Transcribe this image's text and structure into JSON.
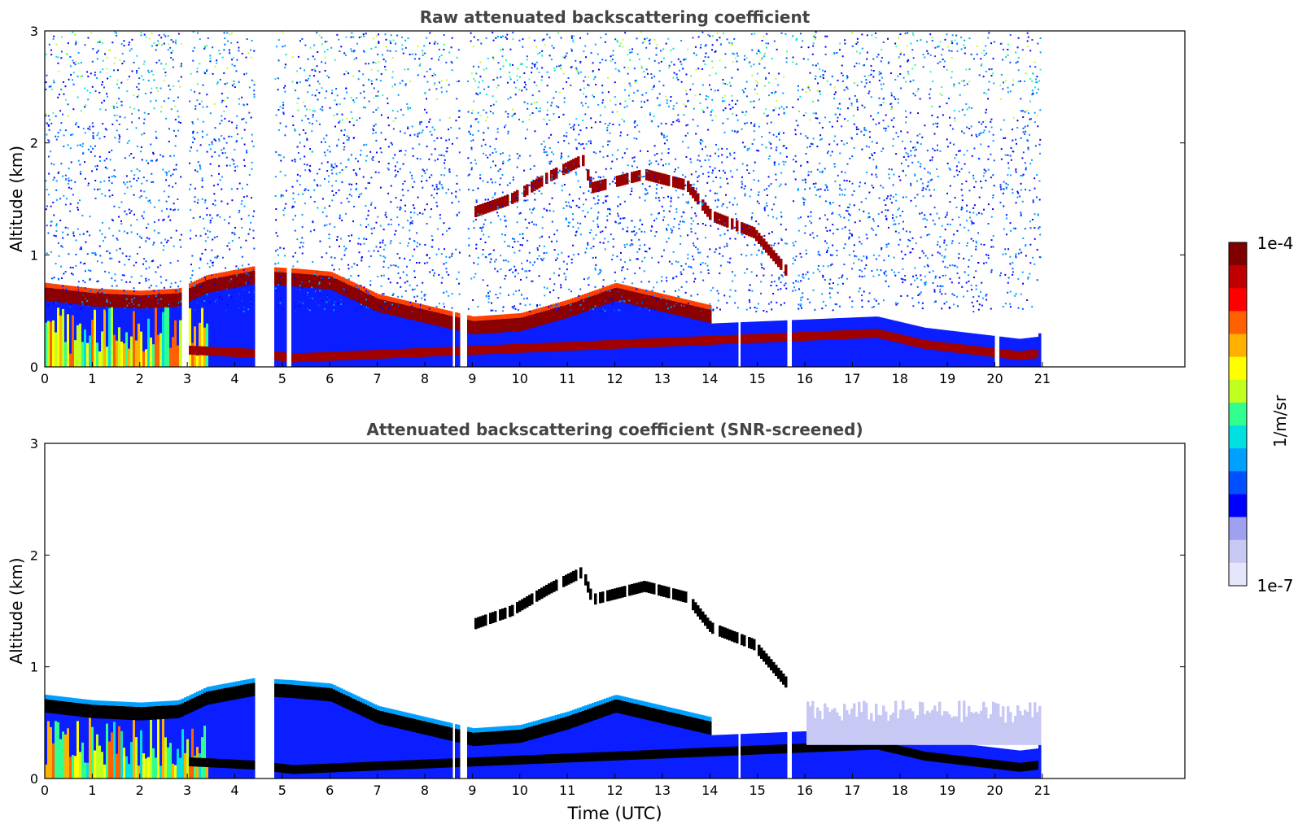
{
  "chart_data": [
    {
      "type": "heatmap",
      "title": "Raw attenuated backscattering coefficient",
      "xlabel": "",
      "ylabel": "Altitude (km)",
      "xlim": [
        0,
        24
      ],
      "ylim": [
        0,
        3
      ],
      "x_ticks": [
        "0",
        "1",
        "2",
        "3",
        "4",
        "5",
        "6",
        "7",
        "8",
        "9",
        "10",
        "11",
        "12",
        "13",
        "14",
        "15",
        "16",
        "17",
        "18",
        "19",
        "20",
        "21"
      ],
      "y_ticks": [
        "0",
        "1",
        "2",
        "3"
      ],
      "data_end_hour": 20.95,
      "noise_level": "high",
      "gaps": [
        [
          2.85,
          3.0
        ],
        [
          4.4,
          4.8
        ],
        [
          5.05,
          5.15
        ],
        [
          8.55,
          8.62
        ],
        [
          8.72,
          8.85
        ],
        [
          14.55,
          14.6
        ],
        [
          15.6,
          15.7
        ],
        [
          19.95,
          20.05
        ]
      ],
      "layers": [
        {
          "name": "boundary layer",
          "points": [
            [
              0,
              0.65
            ],
            [
              1,
              0.6
            ],
            [
              2,
              0.58
            ],
            [
              2.8,
              0.6
            ],
            [
              3.4,
              0.72
            ],
            [
              4.4,
              0.8
            ],
            [
              5.2,
              0.78
            ],
            [
              6,
              0.75
            ],
            [
              7,
              0.55
            ],
            [
              8,
              0.45
            ],
            [
              9,
              0.35
            ],
            [
              10,
              0.38
            ],
            [
              11,
              0.5
            ],
            [
              12,
              0.65
            ],
            [
              13,
              0.55
            ],
            [
              14,
              0.45
            ]
          ]
        },
        {
          "name": "elevated layer",
          "points": [
            [
              9,
              1.38
            ],
            [
              9.8,
              1.5
            ],
            [
              10.6,
              1.7
            ],
            [
              11.3,
              1.85
            ],
            [
              11.5,
              1.6
            ],
            [
              12.6,
              1.72
            ],
            [
              13.5,
              1.62
            ],
            [
              14.0,
              1.35
            ],
            [
              14.9,
              1.2
            ],
            [
              15.6,
              0.85
            ]
          ]
        },
        {
          "name": "surface layer",
          "points": [
            [
              3.0,
              0.15
            ],
            [
              4.4,
              0.12
            ],
            [
              5.2,
              0.08
            ],
            [
              17.5,
              0.3
            ],
            [
              18.5,
              0.2
            ],
            [
              19.5,
              0.15
            ],
            [
              20.5,
              0.1
            ],
            [
              20.9,
              0.12
            ]
          ]
        }
      ]
    },
    {
      "type": "heatmap",
      "title": "Attenuated backscattering coefficient (SNR-screened)",
      "xlabel": "Time (UTC)",
      "ylabel": "Altitude (km)",
      "xlim": [
        0,
        24
      ],
      "ylim": [
        0,
        3
      ],
      "x_ticks": [
        "0",
        "1",
        "2",
        "3",
        "4",
        "5",
        "6",
        "7",
        "8",
        "9",
        "10",
        "11",
        "12",
        "13",
        "14",
        "15",
        "16",
        "17",
        "18",
        "19",
        "20",
        "21"
      ],
      "y_ticks": [
        "0",
        "1",
        "2",
        "3"
      ],
      "data_end_hour": 20.95,
      "noise_level": "screened",
      "gaps": [
        [
          4.4,
          4.8
        ],
        [
          8.55,
          8.62
        ],
        [
          8.72,
          8.85
        ],
        [
          14.55,
          14.6
        ],
        [
          15.6,
          15.7
        ]
      ],
      "layers": [
        {
          "name": "boundary layer",
          "points": [
            [
              0,
              0.65
            ],
            [
              1,
              0.6
            ],
            [
              2,
              0.58
            ],
            [
              2.8,
              0.6
            ],
            [
              3.4,
              0.72
            ],
            [
              4.4,
              0.8
            ],
            [
              5.2,
              0.78
            ],
            [
              6,
              0.75
            ],
            [
              7,
              0.55
            ],
            [
              8,
              0.45
            ],
            [
              9,
              0.35
            ],
            [
              10,
              0.38
            ],
            [
              11,
              0.5
            ],
            [
              12,
              0.65
            ],
            [
              13,
              0.55
            ],
            [
              14,
              0.45
            ]
          ]
        },
        {
          "name": "elevated layer",
          "points": [
            [
              9,
              1.38
            ],
            [
              9.8,
              1.5
            ],
            [
              10.6,
              1.7
            ],
            [
              11.3,
              1.85
            ],
            [
              11.5,
              1.6
            ],
            [
              12.6,
              1.72
            ],
            [
              13.5,
              1.62
            ],
            [
              14.0,
              1.35
            ],
            [
              14.9,
              1.2
            ],
            [
              15.6,
              0.85
            ]
          ]
        },
        {
          "name": "surface layer",
          "points": [
            [
              3.0,
              0.15
            ],
            [
              4.4,
              0.12
            ],
            [
              5.2,
              0.08
            ],
            [
              17.5,
              0.3
            ],
            [
              18.5,
              0.2
            ],
            [
              19.5,
              0.15
            ],
            [
              20.5,
              0.1
            ],
            [
              20.9,
              0.12
            ]
          ]
        }
      ]
    }
  ],
  "colorbar": {
    "max_label": "1e-4",
    "min_label": "1e-7",
    "unit_label": "1/m/sr",
    "colors": [
      "#e6e6fa",
      "#c8c8f5",
      "#a0a0f0",
      "#0000ff",
      "#0050ff",
      "#00a0ff",
      "#00e0e0",
      "#30ff90",
      "#c0ff20",
      "#ffff00",
      "#ffb000",
      "#ff6000",
      "#ff0000",
      "#c00000",
      "#800000"
    ]
  }
}
